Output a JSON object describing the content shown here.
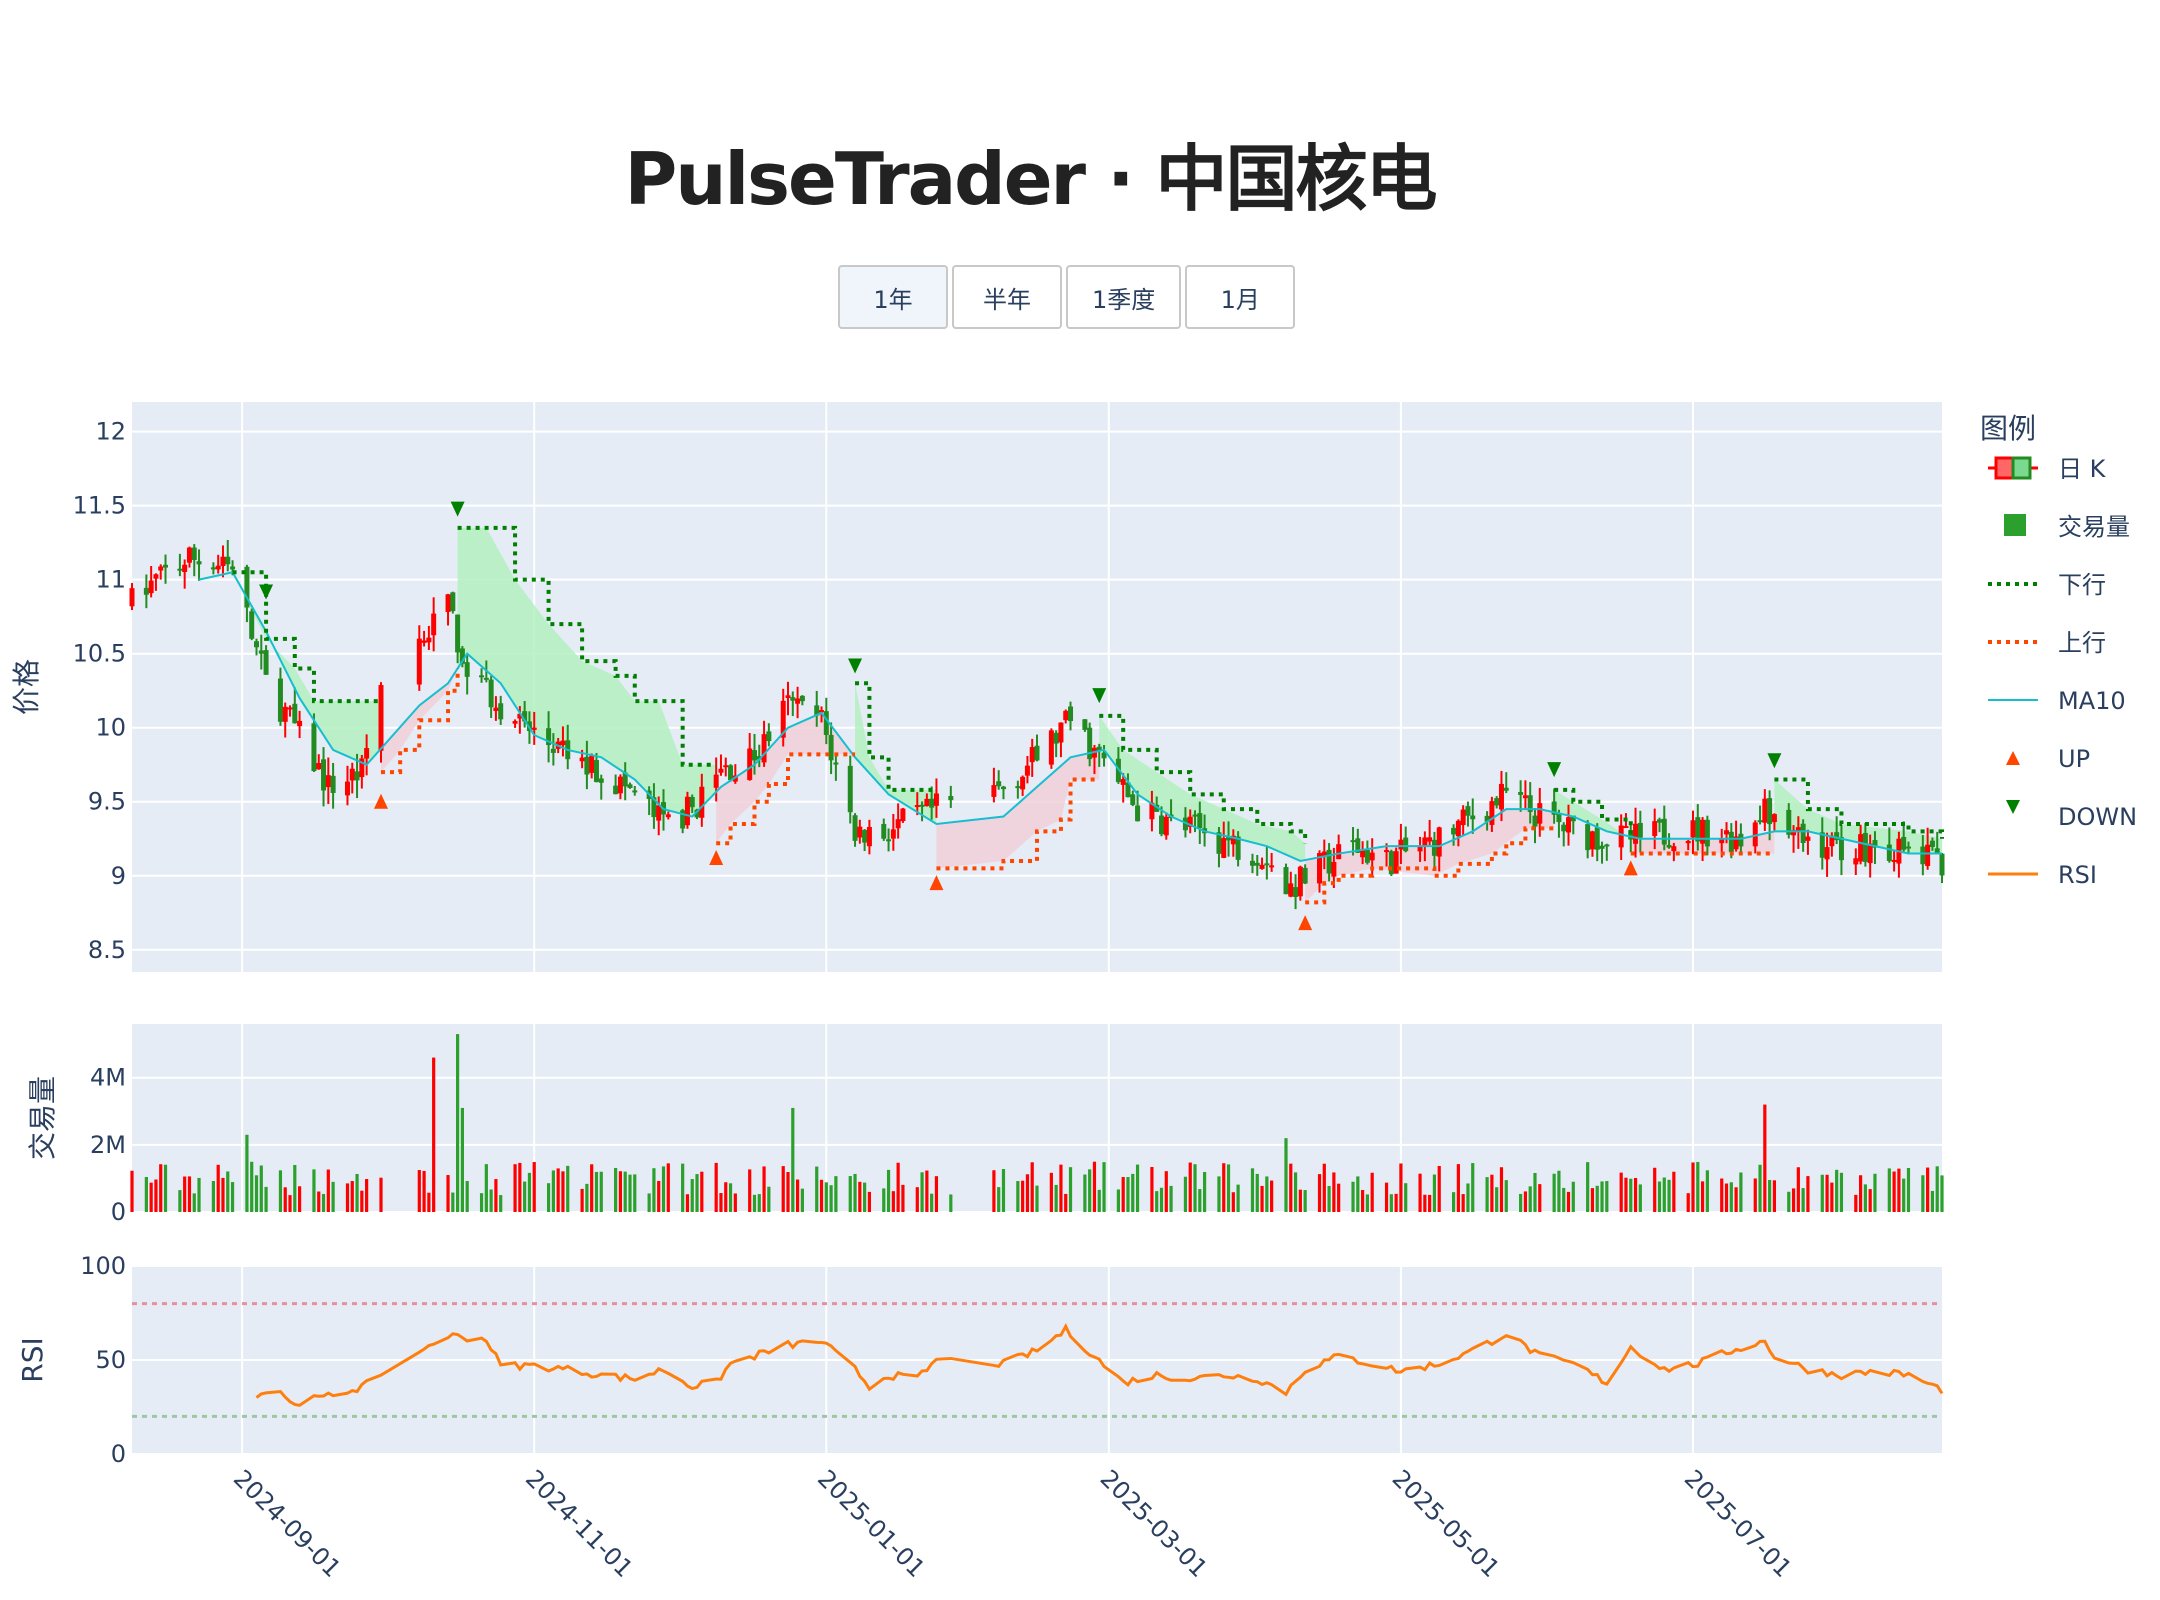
{
  "title": "PulseTrader · 中国核电",
  "range_buttons": [
    {
      "label": "1年",
      "active": true
    },
    {
      "label": "半年",
      "active": false
    },
    {
      "label": "1季度",
      "active": false
    },
    {
      "label": "1月",
      "active": false
    }
  ],
  "colors": {
    "up": "#ff0000",
    "down": "#228b22",
    "volume": "#2ca02c",
    "lower_band": "#008000",
    "upper_band": "#ff4500",
    "ma10": "#17becf",
    "rsi": "#ff7f0e",
    "plot_bg": "#e5ecf6",
    "green_fill": "#b3f0c0",
    "red_fill": "#f2d0d8"
  },
  "chart_data": {
    "type": "candlestick",
    "legend": {
      "title": "图例",
      "items": [
        {
          "name": "日 K",
          "icon": "candle"
        },
        {
          "name": "交易量",
          "icon": "square"
        },
        {
          "name": "下行",
          "icon": "dot-green"
        },
        {
          "name": "上行",
          "icon": "dot-red"
        },
        {
          "name": "MA10",
          "icon": "line-cyan"
        },
        {
          "name": "UP",
          "icon": "triangle-up"
        },
        {
          "name": "DOWN",
          "icon": "triangle-down"
        },
        {
          "name": "RSI",
          "icon": "line-orange"
        }
      ]
    },
    "x_range": [
      "2024-08-09",
      "2025-08-22"
    ],
    "x_ticks": [
      "2024-09-01",
      "2024-11-01",
      "2025-01-01",
      "2025-03-01",
      "2025-05-01",
      "2025-07-01"
    ],
    "panels": {
      "price": {
        "ylabel": "价格",
        "ylim": [
          8.35,
          12.2
        ],
        "yticks": [
          8.5,
          9,
          9.5,
          10,
          10.5,
          11,
          11.5,
          12
        ]
      },
      "volume": {
        "ylabel": "交易量",
        "ylim": [
          0,
          5.6
        ],
        "yticks": [
          0,
          2,
          4
        ],
        "ytick_labels": [
          "0",
          "2M",
          "4M"
        ]
      },
      "rsi": {
        "ylabel": "RSI",
        "ylim": [
          0,
          100
        ],
        "yticks": [
          0,
          50,
          100
        ],
        "upper_line": 80,
        "lower_line": 20
      }
    },
    "price_keypoints": [
      [
        "2024-08-09",
        10.85
      ],
      [
        "2024-08-16",
        11.05
      ],
      [
        "2024-08-22",
        11.15
      ],
      [
        "2024-08-30",
        11.05
      ],
      [
        "2024-09-06",
        10.3
      ],
      [
        "2024-09-12",
        10.0
      ],
      [
        "2024-09-19",
        9.6
      ],
      [
        "2024-09-26",
        9.7
      ],
      [
        "2024-09-30",
        10.3
      ],
      [
        "2024-10-08",
        10.6
      ],
      [
        "2024-10-14",
        10.8
      ],
      [
        "2024-10-18",
        10.4
      ],
      [
        "2024-10-25",
        10.15
      ],
      [
        "2024-11-01",
        9.95
      ],
      [
        "2024-11-08",
        9.8
      ],
      [
        "2024-11-15",
        9.7
      ],
      [
        "2024-11-22",
        9.55
      ],
      [
        "2024-11-28",
        9.35
      ],
      [
        "2024-12-04",
        9.45
      ],
      [
        "2024-12-10",
        9.7
      ],
      [
        "2024-12-17",
        9.8
      ],
      [
        "2024-12-24",
        10.15
      ],
      [
        "2024-12-31",
        10.05
      ],
      [
        "2025-01-07",
        9.3
      ],
      [
        "2025-01-14",
        9.3
      ],
      [
        "2025-01-24",
        9.45
      ],
      [
        "2025-02-07",
        9.6
      ],
      [
        "2025-02-14",
        9.8
      ],
      [
        "2025-02-21",
        10.05
      ],
      [
        "2025-02-28",
        9.75
      ],
      [
        "2025-03-07",
        9.45
      ],
      [
        "2025-03-14",
        9.35
      ],
      [
        "2025-03-21",
        9.3
      ],
      [
        "2025-03-28",
        9.2
      ],
      [
        "2025-04-03",
        9.15
      ],
      [
        "2025-04-07",
        8.9
      ],
      [
        "2025-04-14",
        9.05
      ],
      [
        "2025-04-21",
        9.2
      ],
      [
        "2025-04-28",
        9.1
      ],
      [
        "2025-05-09",
        9.25
      ],
      [
        "2025-05-16",
        9.4
      ],
      [
        "2025-05-23",
        9.55
      ],
      [
        "2025-05-30",
        9.4
      ],
      [
        "2025-06-06",
        9.3
      ],
      [
        "2025-06-13",
        9.25
      ],
      [
        "2025-06-20",
        9.25
      ],
      [
        "2025-06-27",
        9.3
      ],
      [
        "2025-07-04",
        9.3
      ],
      [
        "2025-07-11",
        9.25
      ],
      [
        "2025-07-16",
        9.5
      ],
      [
        "2025-07-22",
        9.25
      ],
      [
        "2025-07-31",
        9.2
      ],
      [
        "2025-08-08",
        9.2
      ],
      [
        "2025-08-15",
        9.15
      ],
      [
        "2025-08-22",
        9.1
      ]
    ],
    "ma10_keypoints": [
      [
        "2024-08-23",
        11.0
      ],
      [
        "2024-08-30",
        11.05
      ],
      [
        "2024-09-06",
        10.65
      ],
      [
        "2024-09-13",
        10.2
      ],
      [
        "2024-09-20",
        9.85
      ],
      [
        "2024-09-27",
        9.75
      ],
      [
        "2024-10-08",
        10.15
      ],
      [
        "2024-10-14",
        10.3
      ],
      [
        "2024-10-18",
        10.5
      ],
      [
        "2024-10-25",
        10.3
      ],
      [
        "2024-11-01",
        9.95
      ],
      [
        "2024-11-08",
        9.85
      ],
      [
        "2024-11-15",
        9.8
      ],
      [
        "2024-11-22",
        9.65
      ],
      [
        "2024-11-28",
        9.45
      ],
      [
        "2024-12-04",
        9.4
      ],
      [
        "2024-12-10",
        9.6
      ],
      [
        "2024-12-17",
        9.75
      ],
      [
        "2024-12-24",
        10.0
      ],
      [
        "2024-12-31",
        10.1
      ],
      [
        "2025-01-07",
        9.8
      ],
      [
        "2025-01-14",
        9.55
      ],
      [
        "2025-01-24",
        9.35
      ],
      [
        "2025-02-07",
        9.4
      ],
      [
        "2025-02-14",
        9.6
      ],
      [
        "2025-02-21",
        9.8
      ],
      [
        "2025-02-28",
        9.85
      ],
      [
        "2025-03-07",
        9.55
      ],
      [
        "2025-03-14",
        9.4
      ],
      [
        "2025-03-21",
        9.3
      ],
      [
        "2025-03-28",
        9.25
      ],
      [
        "2025-04-03",
        9.2
      ],
      [
        "2025-04-10",
        9.1
      ],
      [
        "2025-04-18",
        9.15
      ],
      [
        "2025-04-28",
        9.2
      ],
      [
        "2025-05-09",
        9.2
      ],
      [
        "2025-05-16",
        9.3
      ],
      [
        "2025-05-23",
        9.45
      ],
      [
        "2025-05-30",
        9.45
      ],
      [
        "2025-06-06",
        9.4
      ],
      [
        "2025-06-13",
        9.3
      ],
      [
        "2025-06-20",
        9.25
      ],
      [
        "2025-06-27",
        9.25
      ],
      [
        "2025-07-04",
        9.25
      ],
      [
        "2025-07-11",
        9.25
      ],
      [
        "2025-07-18",
        9.3
      ],
      [
        "2025-07-25",
        9.3
      ],
      [
        "2025-08-01",
        9.25
      ],
      [
        "2025-08-08",
        9.2
      ],
      [
        "2025-08-15",
        9.15
      ],
      [
        "2025-08-22",
        9.15
      ]
    ],
    "lower_band_segments": [
      [
        [
          "2024-08-30",
          11.05
        ],
        [
          "2024-09-06",
          10.6
        ],
        [
          "2024-09-12",
          10.4
        ],
        [
          "2024-09-16",
          10.18
        ],
        [
          "2024-09-30",
          10.18
        ]
      ],
      [
        [
          "2024-10-16",
          11.35
        ],
        [
          "2024-10-22",
          11.35
        ],
        [
          "2024-10-28",
          11.0
        ],
        [
          "2024-11-04",
          10.7
        ],
        [
          "2024-11-11",
          10.45
        ],
        [
          "2024-11-18",
          10.35
        ],
        [
          "2024-11-22",
          10.18
        ],
        [
          "2024-11-27",
          10.18
        ],
        [
          "2024-12-02",
          9.75
        ],
        [
          "2024-12-09",
          9.75
        ]
      ],
      [
        [
          "2025-01-07",
          10.3
        ],
        [
          "2025-01-10",
          9.8
        ],
        [
          "2025-01-14",
          9.58
        ],
        [
          "2025-01-24",
          9.58
        ]
      ],
      [
        [
          "2025-02-27",
          10.08
        ],
        [
          "2025-03-04",
          9.85
        ],
        [
          "2025-03-11",
          9.7
        ],
        [
          "2025-03-18",
          9.55
        ],
        [
          "2025-03-25",
          9.45
        ],
        [
          "2025-04-01",
          9.35
        ],
        [
          "2025-04-08",
          9.3
        ],
        [
          "2025-04-11",
          9.22
        ]
      ],
      [
        [
          "2025-06-02",
          9.58
        ],
        [
          "2025-06-06",
          9.5
        ],
        [
          "2025-06-12",
          9.38
        ],
        [
          "2025-06-18",
          9.25
        ]
      ],
      [
        [
          "2025-07-18",
          9.65
        ],
        [
          "2025-07-25",
          9.45
        ],
        [
          "2025-08-01",
          9.35
        ],
        [
          "2025-08-15",
          9.3
        ],
        [
          "2025-08-22",
          9.25
        ]
      ]
    ],
    "upper_band_segments": [
      [
        [
          "2024-09-30",
          9.7
        ],
        [
          "2024-10-04",
          9.85
        ],
        [
          "2024-10-08",
          10.05
        ],
        [
          "2024-10-14",
          10.25
        ],
        [
          "2024-10-16",
          10.4
        ]
      ],
      [
        [
          "2024-12-09",
          9.22
        ],
        [
          "2024-12-12",
          9.35
        ],
        [
          "2024-12-17",
          9.5
        ],
        [
          "2024-12-20",
          9.62
        ],
        [
          "2024-12-24",
          9.82
        ],
        [
          "2025-01-07",
          9.82
        ]
      ],
      [
        [
          "2025-01-24",
          9.05
        ],
        [
          "2025-02-07",
          9.1
        ],
        [
          "2025-02-14",
          9.3
        ],
        [
          "2025-02-19",
          9.38
        ],
        [
          "2025-02-21",
          9.65
        ],
        [
          "2025-02-27",
          9.65
        ]
      ],
      [
        [
          "2025-04-11",
          8.82
        ],
        [
          "2025-04-15",
          8.95
        ],
        [
          "2025-04-18",
          9.0
        ],
        [
          "2025-04-25",
          9.05
        ],
        [
          "2025-05-08",
          9.0
        ],
        [
          "2025-05-13",
          9.08
        ],
        [
          "2025-05-20",
          9.15
        ],
        [
          "2025-05-23",
          9.22
        ],
        [
          "2025-05-27",
          9.32
        ],
        [
          "2025-06-02",
          9.32
        ]
      ],
      [
        [
          "2025-06-18",
          9.15
        ],
        [
          "2025-07-01",
          9.15
        ],
        [
          "2025-07-15",
          9.15
        ],
        [
          "2025-07-18",
          9.15
        ]
      ]
    ],
    "up_markers": [
      [
        "2024-09-30",
        9.5
      ],
      [
        "2024-12-09",
        9.12
      ],
      [
        "2025-01-24",
        8.95
      ],
      [
        "2025-04-11",
        8.68
      ],
      [
        "2025-06-18",
        9.05
      ]
    ],
    "down_markers": [
      [
        "2024-09-06",
        10.92
      ],
      [
        "2024-10-16",
        11.48
      ],
      [
        "2025-01-07",
        10.42
      ],
      [
        "2025-02-27",
        10.22
      ],
      [
        "2025-06-02",
        9.72
      ],
      [
        "2025-07-18",
        9.78
      ]
    ],
    "volume_spikes": [
      [
        "2024-10-11",
        4.6
      ],
      [
        "2024-10-16",
        5.3
      ],
      [
        "2024-10-17",
        3.1
      ],
      [
        "2024-12-25",
        3.1
      ],
      [
        "2025-04-07",
        2.2
      ],
      [
        "2025-07-16",
        3.2
      ],
      [
        "2024-09-02",
        2.3
      ]
    ],
    "rsi_keypoints": [
      [
        "2024-09-04",
        32
      ],
      [
        "2024-09-09",
        34
      ],
      [
        "2024-09-11",
        27
      ],
      [
        "2024-09-18",
        30
      ],
      [
        "2024-09-25",
        35
      ],
      [
        "2024-10-02",
        42
      ],
      [
        "2024-10-04",
        53
      ],
      [
        "2024-10-09",
        56
      ],
      [
        "2024-10-14",
        63
      ],
      [
        "2024-10-22",
        61
      ],
      [
        "2024-10-25",
        47
      ],
      [
        "2024-11-01",
        47
      ],
      [
        "2024-11-08",
        45
      ],
      [
        "2024-11-15",
        42
      ],
      [
        "2024-11-22",
        40
      ],
      [
        "2024-11-28",
        45
      ],
      [
        "2024-12-04",
        36
      ],
      [
        "2024-12-09",
        38
      ],
      [
        "2024-12-12",
        48
      ],
      [
        "2024-12-18",
        53
      ],
      [
        "2024-12-24",
        58
      ],
      [
        "2024-12-31",
        60
      ],
      [
        "2025-01-07",
        45
      ],
      [
        "2025-01-10",
        36
      ],
      [
        "2025-01-14",
        42
      ],
      [
        "2025-01-20",
        40
      ],
      [
        "2025-01-24",
        50
      ],
      [
        "2025-02-07",
        48
      ],
      [
        "2025-02-14",
        55
      ],
      [
        "2025-02-20",
        66
      ],
      [
        "2025-02-26",
        52
      ],
      [
        "2025-03-04",
        38
      ],
      [
        "2025-03-11",
        42
      ],
      [
        "2025-03-18",
        40
      ],
      [
        "2025-03-25",
        42
      ],
      [
        "2025-04-01",
        40
      ],
      [
        "2025-04-07",
        33
      ],
      [
        "2025-04-11",
        45
      ],
      [
        "2025-04-18",
        52
      ],
      [
        "2025-04-25",
        48
      ],
      [
        "2025-05-01",
        44
      ],
      [
        "2025-05-09",
        48
      ],
      [
        "2025-05-16",
        55
      ],
      [
        "2025-05-23",
        64
      ],
      [
        "2025-05-30",
        52
      ],
      [
        "2025-06-06",
        48
      ],
      [
        "2025-06-13",
        38
      ],
      [
        "2025-06-18",
        57
      ],
      [
        "2025-06-25",
        45
      ],
      [
        "2025-07-02",
        48
      ],
      [
        "2025-07-09",
        55
      ],
      [
        "2025-07-16",
        60
      ],
      [
        "2025-07-18",
        52
      ],
      [
        "2025-07-25",
        45
      ],
      [
        "2025-08-01",
        42
      ],
      [
        "2025-08-08",
        44
      ],
      [
        "2025-08-15",
        42
      ],
      [
        "2025-08-22",
        34
      ]
    ]
  }
}
